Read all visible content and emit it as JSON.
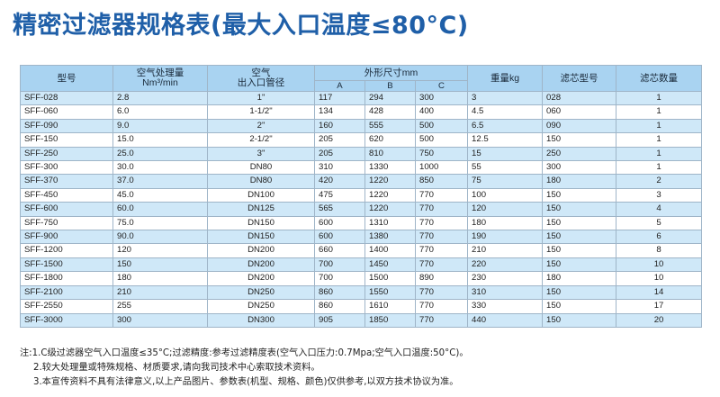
{
  "title": "精密过滤器规格表(最大入口温度≤80°C)",
  "table": {
    "headers": {
      "model": "型号",
      "capacity": "空气处理量",
      "capacity_unit": "Nm³/min",
      "port": "空气",
      "port_sub": "出入口管径",
      "dims": "外形尺寸mm",
      "dim_a": "A",
      "dim_b": "B",
      "dim_c": "C",
      "weight": "重量kg",
      "element_model": "滤芯型号",
      "element_qty": "滤芯数量"
    },
    "rows": [
      [
        "SFF-028",
        "2.8",
        "1\"",
        "117",
        "294",
        "300",
        "3",
        "028",
        "1"
      ],
      [
        "SFF-060",
        "6.0",
        "1-1/2\"",
        "134",
        "428",
        "400",
        "4.5",
        "060",
        "1"
      ],
      [
        "SFF-090",
        "9.0",
        "2\"",
        "160",
        "555",
        "500",
        "6.5",
        "090",
        "1"
      ],
      [
        "SFF-150",
        "15.0",
        "2-1/2\"",
        "205",
        "620",
        "500",
        "12.5",
        "150",
        "1"
      ],
      [
        "SFF-250",
        "25.0",
        "3\"",
        "205",
        "810",
        "750",
        "15",
        "250",
        "1"
      ],
      [
        "SFF-300",
        "30.0",
        "DN80",
        "310",
        "1330",
        "1000",
        "55",
        "300",
        "1"
      ],
      [
        "SFF-370",
        "37.0",
        "DN80",
        "420",
        "1220",
        "850",
        "75",
        "180",
        "2"
      ],
      [
        "SFF-450",
        "45.0",
        "DN100",
        "475",
        "1220",
        "770",
        "100",
        "150",
        "3"
      ],
      [
        "SFF-600",
        "60.0",
        "DN125",
        "565",
        "1220",
        "770",
        "120",
        "150",
        "4"
      ],
      [
        "SFF-750",
        "75.0",
        "DN150",
        "600",
        "1310",
        "770",
        "180",
        "150",
        "5"
      ],
      [
        "SFF-900",
        "90.0",
        "DN150",
        "600",
        "1380",
        "770",
        "190",
        "150",
        "6"
      ],
      [
        "SFF-1200",
        "120",
        "DN200",
        "660",
        "1400",
        "770",
        "210",
        "150",
        "8"
      ],
      [
        "SFF-1500",
        "150",
        "DN200",
        "700",
        "1450",
        "770",
        "220",
        "150",
        "10"
      ],
      [
        "SFF-1800",
        "180",
        "DN200",
        "700",
        "1500",
        "890",
        "230",
        "180",
        "10"
      ],
      [
        "SFF-2100",
        "210",
        "DN250",
        "860",
        "1550",
        "770",
        "310",
        "150",
        "14"
      ],
      [
        "SFF-2550",
        "255",
        "DN250",
        "860",
        "1610",
        "770",
        "330",
        "150",
        "17"
      ],
      [
        "SFF-3000",
        "300",
        "DN300",
        "905",
        "1850",
        "770",
        "440",
        "150",
        "20"
      ]
    ]
  },
  "notes": [
    "注:1.C级过滤器空气入口温度≤35°C;过滤精度:参考过滤精度表(空气入口压力:0.7Mpa;空气入口温度:50°C)。",
    "2.较大处理量或特殊规格、材质要求,请向我司技术中心索取技术资料。",
    "3.本宣传资料不具有法律意义,以上产品图片、参数表(机型、规格、颜色)仅供参考,以双方技术协议为准。"
  ]
}
